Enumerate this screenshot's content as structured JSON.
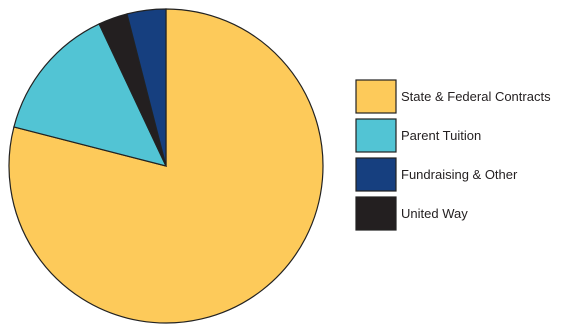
{
  "chart_data": {
    "type": "pie",
    "title": "",
    "start_angle_deg": 0,
    "direction": "clockwise",
    "legend_position": "right",
    "slices": [
      {
        "label": "State & Federal Contracts",
        "value": 79,
        "color": "#fdca5a"
      },
      {
        "label": "Parent Tuition",
        "value": 14,
        "color": "#52c4d4"
      },
      {
        "label": "United Way",
        "value": 3,
        "color": "#231f20"
      },
      {
        "label": "Fundraising & Other",
        "value": 4,
        "color": "#163f7f"
      }
    ],
    "legend": [
      {
        "label": "State & Federal Contracts",
        "color": "#fdca5a"
      },
      {
        "label": "Parent Tuition",
        "color": "#52c4d4"
      },
      {
        "label": "Fundraising & Other",
        "color": "#163f7f"
      },
      {
        "label": "United Way",
        "color": "#231f20"
      }
    ]
  }
}
